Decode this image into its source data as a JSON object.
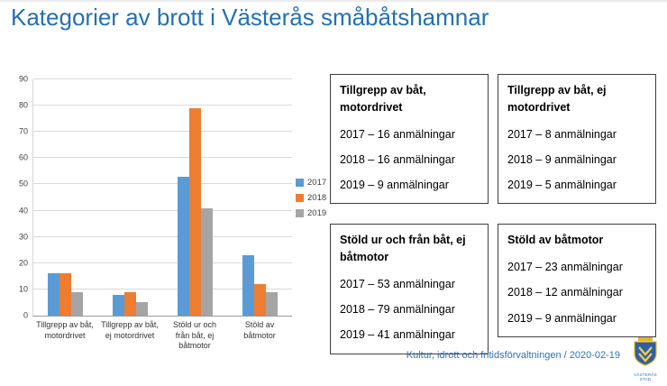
{
  "slide": {
    "title": "Kategorier av brott i Västerås småbåtshamnar",
    "footer": "Kultur, idrott och fritidsförvaltningen / 2020-02-19",
    "logo_text": "VÄSTERÅS STAD"
  },
  "chart_data": {
    "type": "bar",
    "title": "",
    "xlabel": "",
    "ylabel": "",
    "categories": [
      "Tillgrepp av båt, motordrivet",
      "Tillgrepp av båt, ej motordrivet",
      "Stöld ur och från båt, ej båtmotor",
      "Stöld av båtmotor"
    ],
    "series": [
      {
        "name": "2017",
        "color": "#5b9bd5",
        "values": [
          16,
          8,
          53,
          23
        ]
      },
      {
        "name": "2018",
        "color": "#ed7d31",
        "values": [
          16,
          9,
          79,
          12
        ]
      },
      {
        "name": "2019",
        "color": "#a5a5a5",
        "values": [
          9,
          5,
          41,
          9
        ]
      }
    ],
    "ylim": [
      0,
      90
    ],
    "ytick_step": 10,
    "grid": true,
    "legend_position": "right"
  },
  "info_boxes": [
    {
      "title": "Tillgrepp av båt, motordrivet",
      "lines": [
        "2017 – 16 anmälningar",
        "2018 – 16 anmälningar",
        "2019 – 9 anmälningar"
      ]
    },
    {
      "title": "Tillgrepp av båt, ej motordrivet",
      "lines": [
        "2017 – 8 anmälningar",
        "2018 – 9 anmälningar",
        "2019 – 5 anmälningar"
      ]
    },
    {
      "title": "Stöld ur och från båt, ej båtmotor",
      "lines": [
        "2017 – 53 anmälningar",
        "2018 – 79 anmälningar",
        "2019 – 41 anmälningar"
      ]
    },
    {
      "title": "Stöld av båtmotor",
      "lines": [
        "2017 – 23 anmälningar",
        "2018 – 12 anmälningar",
        "2019 – 9 anmälningar"
      ]
    }
  ]
}
